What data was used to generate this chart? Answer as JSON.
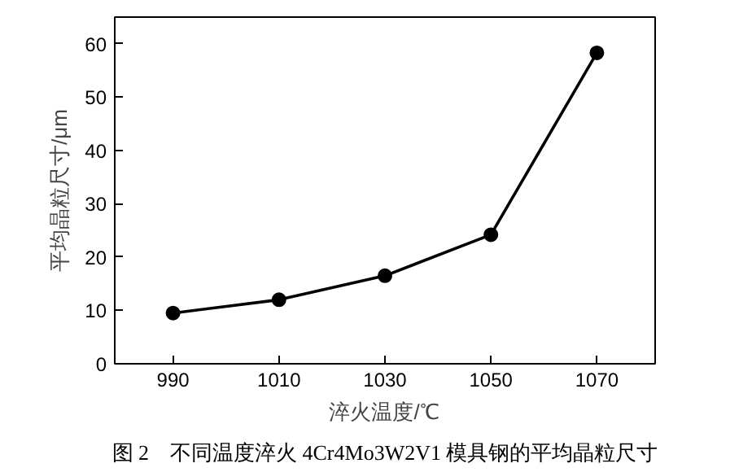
{
  "chart_data": {
    "type": "line",
    "xlabel": "淬火温度/℃",
    "ylabel": "平均晶粒尺寸/μm",
    "x": [
      990,
      1010,
      1030,
      1050,
      1070
    ],
    "series": [
      {
        "color": "#000000",
        "values": [
          9.5,
          12,
          16.5,
          24.2,
          58.3
        ]
      }
    ],
    "xlim": [
      979,
      1081
    ],
    "xticks": [
      990,
      1010,
      1030,
      1050,
      1070
    ],
    "ylim": [
      0,
      65
    ],
    "yticks": [
      0,
      10,
      20,
      30,
      40,
      50,
      60
    ],
    "marker": "circle",
    "line_style": "solid",
    "grid": false,
    "annotations": [
      "图 2　不同温度淬火 4Cr4Mo3W2V1 模具钢的平均晶粒尺寸"
    ]
  }
}
